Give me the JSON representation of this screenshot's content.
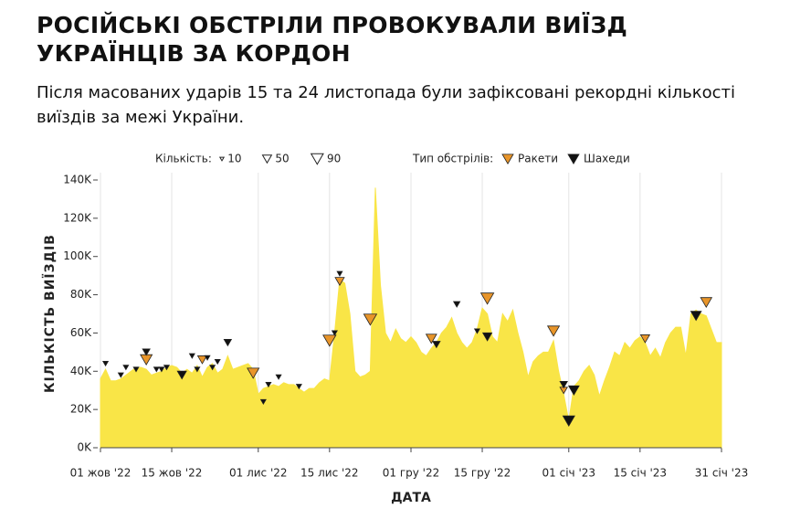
{
  "chart_data": {
    "type": "area",
    "title": "РОСІЙСЬКІ ОБСТРІЛИ ПРОВОКУВАЛИ ВИЇЗД УКРАЇНЦІВ ЗА КОРДОН",
    "subtitle": "Після масованих ударів 15 та 24 листопада були зафіксовані рекордні кількості виїздів за межі України.",
    "y_label": "КІЛЬКІСТЬ ВИЇЗДІВ",
    "x_label": "ДАТА",
    "size_legend_title": "Кількість:",
    "size_legend": [
      10,
      50,
      90
    ],
    "type_legend_title": "Тип обстрілів:",
    "color": "#f9e547",
    "grid": true,
    "ylim": [
      0,
      140000
    ],
    "yticks": [
      {
        "value": 0,
        "label": "0K"
      },
      {
        "value": 20000,
        "label": "20K"
      },
      {
        "value": 40000,
        "label": "40K"
      },
      {
        "value": 60000,
        "label": "60K"
      },
      {
        "value": 80000,
        "label": "80K"
      },
      {
        "value": 100000,
        "label": "100K"
      },
      {
        "value": 120000,
        "label": "120K"
      },
      {
        "value": 140000,
        "label": "140K"
      }
    ],
    "xlim": [
      "2022-10-01",
      "2023-01-31"
    ],
    "xticks": [
      {
        "value": "2022-10-01",
        "label": "01 жов '22"
      },
      {
        "value": "2022-10-15",
        "label": "15 жов '22"
      },
      {
        "value": "2022-11-01",
        "label": "01 лис '22"
      },
      {
        "value": "2022-11-15",
        "label": "15 лис '22"
      },
      {
        "value": "2022-12-01",
        "label": "01 гру '22"
      },
      {
        "value": "2022-12-15",
        "label": "15 гру '22"
      },
      {
        "value": "2023-01-01",
        "label": "01 січ '23"
      },
      {
        "value": "2023-01-15",
        "label": "15 січ '23"
      },
      {
        "value": "2023-01-31",
        "label": "31 січ '23"
      }
    ],
    "x": [
      "2022-10-01",
      "2022-10-02",
      "2022-10-03",
      "2022-10-04",
      "2022-10-05",
      "2022-10-06",
      "2022-10-07",
      "2022-10-08",
      "2022-10-09",
      "2022-10-10",
      "2022-10-11",
      "2022-10-12",
      "2022-10-13",
      "2022-10-14",
      "2022-10-15",
      "2022-10-16",
      "2022-10-17",
      "2022-10-18",
      "2022-10-19",
      "2022-10-20",
      "2022-10-21",
      "2022-10-22",
      "2022-10-23",
      "2022-10-24",
      "2022-10-25",
      "2022-10-26",
      "2022-10-27",
      "2022-10-28",
      "2022-10-29",
      "2022-10-30",
      "2022-10-31",
      "2022-11-01",
      "2022-11-02",
      "2022-11-03",
      "2022-11-04",
      "2022-11-05",
      "2022-11-06",
      "2022-11-07",
      "2022-11-08",
      "2022-11-09",
      "2022-11-10",
      "2022-11-11",
      "2022-11-12",
      "2022-11-13",
      "2022-11-14",
      "2022-11-15",
      "2022-11-16",
      "2022-11-17",
      "2022-11-18",
      "2022-11-19",
      "2022-11-20",
      "2022-11-21",
      "2022-11-22",
      "2022-11-23",
      "2022-11-24",
      "2022-11-25",
      "2022-11-26",
      "2022-11-27",
      "2022-11-28",
      "2022-11-29",
      "2022-11-30",
      "2022-12-01",
      "2022-12-02",
      "2022-12-03",
      "2022-12-04",
      "2022-12-05",
      "2022-12-06",
      "2022-12-07",
      "2022-12-08",
      "2022-12-09",
      "2022-12-10",
      "2022-12-11",
      "2022-12-12",
      "2022-12-13",
      "2022-12-14",
      "2022-12-15",
      "2022-12-16",
      "2022-12-17",
      "2022-12-18",
      "2022-12-19",
      "2022-12-20",
      "2022-12-21",
      "2022-12-22",
      "2022-12-23",
      "2022-12-24",
      "2022-12-25",
      "2022-12-26",
      "2022-12-27",
      "2022-12-28",
      "2022-12-29",
      "2022-12-30",
      "2022-12-31",
      "2023-01-01",
      "2023-01-02",
      "2023-01-03",
      "2023-01-04",
      "2023-01-05",
      "2023-01-06",
      "2023-01-07",
      "2023-01-08",
      "2023-01-09",
      "2023-01-10",
      "2023-01-11",
      "2023-01-12",
      "2023-01-13",
      "2023-01-14",
      "2023-01-15",
      "2023-01-16",
      "2023-01-17",
      "2023-01-18",
      "2023-01-19",
      "2023-01-20",
      "2023-01-21",
      "2023-01-22",
      "2023-01-23",
      "2023-01-24",
      "2023-01-25",
      "2023-01-26",
      "2023-01-27",
      "2023-01-28",
      "2023-01-29",
      "2023-01-30",
      "2023-01-31"
    ],
    "values": [
      36000,
      41000,
      35000,
      35000,
      36000,
      38000,
      40000,
      42000,
      42000,
      41000,
      38000,
      39000,
      40000,
      42000,
      43000,
      42000,
      39000,
      41000,
      39000,
      43000,
      37000,
      42000,
      44000,
      39000,
      41000,
      48000,
      41000,
      42000,
      43000,
      44000,
      41000,
      28000,
      31000,
      32000,
      33000,
      32000,
      34000,
      33000,
      33000,
      31000,
      29000,
      31000,
      31000,
      34000,
      36000,
      35000,
      60000,
      88000,
      86000,
      70000,
      40000,
      37000,
      38000,
      40000,
      136000,
      85000,
      60000,
      55000,
      62000,
      57000,
      55000,
      58000,
      55000,
      50000,
      48000,
      52000,
      55000,
      60000,
      63000,
      68000,
      60000,
      55000,
      52000,
      55000,
      62000,
      73000,
      70000,
      58000,
      55000,
      70000,
      66000,
      72000,
      60000,
      50000,
      37000,
      45000,
      48000,
      50000,
      50000,
      56000,
      40000,
      28000,
      14000,
      32000,
      35000,
      40000,
      43000,
      38000,
      27000,
      35000,
      42000,
      50000,
      48000,
      55000,
      52000,
      56000,
      58000,
      55000,
      48000,
      52000,
      47000,
      55000,
      60000,
      63000,
      63000,
      48000,
      70000,
      72000,
      70000,
      69000,
      62000,
      55000,
      55000
    ],
    "markers": [
      {
        "name": "Ракети",
        "color": "#e8952a",
        "x": [
          "2022-10-10",
          "2022-10-21",
          "2022-10-31",
          "2022-11-15",
          "2022-11-17",
          "2022-11-23",
          "2022-12-05",
          "2022-12-16",
          "2022-12-29",
          "2022-12-31",
          "2023-01-16",
          "2023-01-28"
        ],
        "y": [
          46000,
          46000,
          39000,
          56000,
          87000,
          67000,
          57000,
          78000,
          61000,
          30000,
          57000,
          76000
        ],
        "counts": [
          50,
          30,
          50,
          60,
          30,
          60,
          40,
          60,
          50,
          20,
          30,
          45
        ]
      },
      {
        "name": "Шахеди",
        "color": "#111111",
        "x": [
          "2022-10-02",
          "2022-10-05",
          "2022-10-06",
          "2022-10-08",
          "2022-10-10",
          "2022-10-12",
          "2022-10-13",
          "2022-10-14",
          "2022-10-17",
          "2022-10-19",
          "2022-10-20",
          "2022-10-22",
          "2022-10-23",
          "2022-10-24",
          "2022-10-26",
          "2022-11-02",
          "2022-11-03",
          "2022-11-05",
          "2022-11-09",
          "2022-11-16",
          "2022-11-17",
          "2022-12-06",
          "2022-12-10",
          "2022-12-14",
          "2022-12-16",
          "2022-12-31",
          "2023-01-01",
          "2023-01-02",
          "2023-01-26"
        ],
        "y": [
          44000,
          38000,
          42000,
          41000,
          50000,
          41000,
          41000,
          42000,
          38000,
          48000,
          41000,
          47000,
          42000,
          45000,
          55000,
          24000,
          33000,
          37000,
          32000,
          60000,
          91000,
          54000,
          75000,
          61000,
          58000,
          33000,
          14000,
          30000,
          69000
        ],
        "counts": [
          10,
          10,
          10,
          10,
          20,
          10,
          10,
          10,
          30,
          10,
          10,
          10,
          10,
          10,
          20,
          10,
          10,
          10,
          10,
          10,
          10,
          20,
          15,
          10,
          30,
          20,
          50,
          40,
          40
        ]
      }
    ]
  }
}
